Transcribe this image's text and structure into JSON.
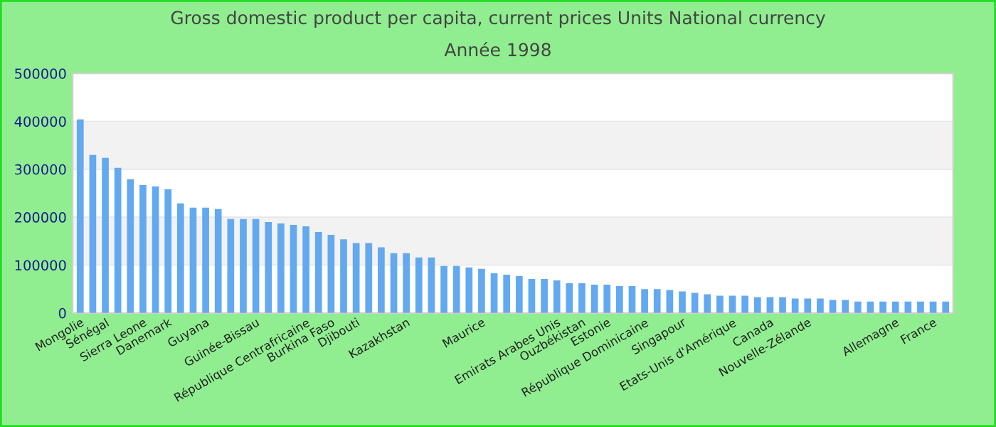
{
  "chart_data": {
    "type": "bar",
    "title": "Gross domestic product per capita, current prices Units National currency",
    "subtitle": "Année 1998",
    "categories": [
      "Mongolie",
      null,
      "Sénégal",
      null,
      null,
      "Sierra Leone",
      null,
      "Danemark",
      null,
      null,
      "Guyana",
      null,
      null,
      null,
      "Guinée-Bissau",
      null,
      null,
      null,
      "République Centrafricaine",
      null,
      "Burkina Faso",
      null,
      "Djibouti",
      null,
      null,
      null,
      "Kazakhstan",
      null,
      null,
      null,
      null,
      null,
      "Maurice",
      null,
      null,
      null,
      null,
      null,
      "Emirats Arabes Unis",
      null,
      "Ouzbékistan",
      null,
      "Estonie",
      null,
      null,
      "République Dominicaine",
      null,
      null,
      "Singapour",
      null,
      null,
      null,
      "Etats-Unis d'Amérique",
      null,
      null,
      "Canada",
      null,
      null,
      "Nouvelle-Zélande",
      null,
      null,
      null,
      null,
      null,
      null,
      "Allemagne",
      null,
      null,
      "France",
      null
    ],
    "values": [
      404000,
      330000,
      324000,
      303000,
      279000,
      267000,
      264000,
      258000,
      229000,
      220000,
      220000,
      217000,
      196000,
      196000,
      196000,
      190000,
      187000,
      184000,
      181000,
      169000,
      163000,
      154000,
      146000,
      146000,
      137000,
      125000,
      125000,
      116000,
      116000,
      98000,
      98000,
      95000,
      92000,
      83000,
      80000,
      77000,
      71000,
      71000,
      68000,
      62000,
      62000,
      59000,
      59000,
      56000,
      56000,
      50000,
      50000,
      48000,
      45000,
      42000,
      39000,
      36000,
      36000,
      36000,
      33000,
      33000,
      33000,
      30000,
      30000,
      30000,
      27000,
      27000,
      24000,
      24000,
      24000,
      24000,
      24000,
      24000,
      24000,
      24000
    ],
    "color": "#63a9f0",
    "ylim": [
      0,
      500000
    ],
    "yticks": [
      0,
      100000,
      200000,
      300000,
      400000,
      500000
    ],
    "grid": "y",
    "legend": false
  }
}
